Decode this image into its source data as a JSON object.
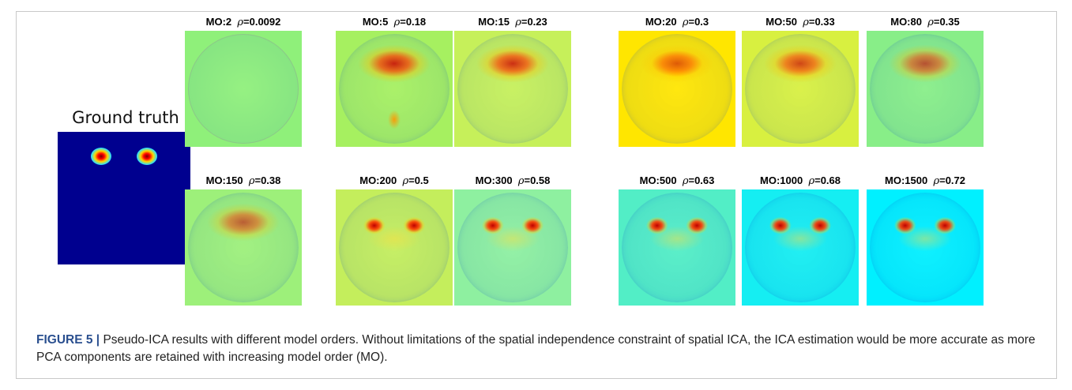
{
  "ground_truth": {
    "label": "Ground truth",
    "background_color": "#00008f"
  },
  "panels": [
    {
      "mo": "MO:2",
      "rho": "0.0092",
      "bg": "#8ff07a",
      "hot": 0.0
    },
    {
      "mo": "MO:5",
      "rho": "0.18",
      "bg": "#a6f060",
      "hot": 0.85
    },
    {
      "mo": "MO:15",
      "rho": "0.23",
      "bg": "#c6f05a",
      "hot": 0.8
    },
    {
      "mo": "MO:20",
      "rho": "0.3",
      "bg": "#ffe600",
      "hot": 0.6
    },
    {
      "mo": "MO:50",
      "rho": "0.33",
      "bg": "#d8f040",
      "hot": 0.7
    },
    {
      "mo": "MO:80",
      "rho": "0.35",
      "bg": "#88ee88",
      "hot": 0.65
    },
    {
      "mo": "MO:150",
      "rho": "0.38",
      "bg": "#9df07a",
      "hot": 0.6
    },
    {
      "mo": "MO:200",
      "rho": "0.5",
      "bg": "#c4ee5c",
      "hot": 0.65
    },
    {
      "mo": "MO:300",
      "rho": "0.58",
      "bg": "#8ef0a0",
      "hot": 0.55
    },
    {
      "mo": "MO:500",
      "rho": "0.63",
      "bg": "#52eec6",
      "hot": 0.5
    },
    {
      "mo": "MO:1000",
      "rho": "0.68",
      "bg": "#15eef2",
      "hot": 0.45
    },
    {
      "mo": "MO:1500",
      "rho": "0.72",
      "bg": "#00f0ff",
      "hot": 0.45
    }
  ],
  "caption": {
    "figure_label": "FIGURE 5 |",
    "text": " Pseudo-ICA results with different model orders. Without limitations of the spatial independence constraint of spatial ICA, the ICA estimation would be more accurate as more PCA components are retained with increasing model order (MO)."
  },
  "colors": {
    "caption_label": "#2a4f8f",
    "hot_red": "#d80000",
    "noise_blue": "#2a6bd6"
  }
}
